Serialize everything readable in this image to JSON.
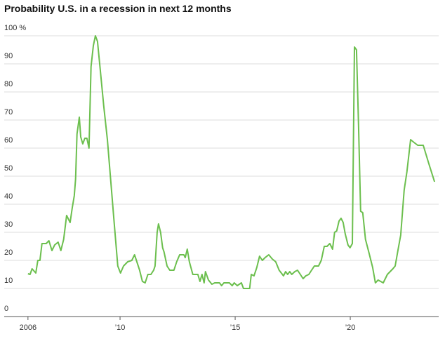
{
  "chart_data": {
    "type": "line",
    "title": "Probability U.S. in a recession in next 12 months",
    "xlim": [
      2005.7,
      2023.84
    ],
    "xticks": [
      {
        "value": 2006,
        "label": "2006"
      },
      {
        "value": 2010,
        "label": "’10"
      },
      {
        "value": 2015,
        "label": "’15"
      },
      {
        "value": 2020,
        "label": "’20"
      }
    ],
    "ylim": [
      0,
      100
    ],
    "yticks": [
      0,
      10,
      20,
      30,
      40,
      50,
      60,
      70,
      80,
      90,
      {
        "value": 100,
        "label": "100 %"
      }
    ],
    "grid": true,
    "series": [
      {
        "color": "#6cbf4e",
        "x": [
          2006.0,
          2006.09,
          2006.18,
          2006.34,
          2006.43,
          2006.52,
          2006.61,
          2006.79,
          2006.91,
          2007.04,
          2007.16,
          2007.31,
          2007.43,
          2007.55,
          2007.68,
          2007.83,
          2007.92,
          2008.01,
          2008.07,
          2008.13,
          2008.23,
          2008.29,
          2008.38,
          2008.47,
          2008.56,
          2008.65,
          2008.74,
          2008.84,
          2008.93,
          2009.02,
          2009.14,
          2009.29,
          2009.45,
          2009.6,
          2009.75,
          2009.9,
          2010.02,
          2010.15,
          2010.33,
          2010.51,
          2010.63,
          2010.73,
          2010.85,
          2010.97,
          2011.09,
          2011.21,
          2011.34,
          2011.46,
          2011.52,
          2011.61,
          2011.67,
          2011.76,
          2011.85,
          2011.91,
          2012.04,
          2012.16,
          2012.34,
          2012.46,
          2012.59,
          2012.77,
          2012.83,
          2012.92,
          2013.01,
          2013.16,
          2013.38,
          2013.47,
          2013.56,
          2013.65,
          2013.71,
          2013.84,
          2013.99,
          2014.11,
          2014.32,
          2014.41,
          2014.51,
          2014.75,
          2014.87,
          2014.96,
          2015.09,
          2015.27,
          2015.36,
          2015.63,
          2015.7,
          2015.82,
          2015.94,
          2016.06,
          2016.18,
          2016.3,
          2016.46,
          2016.61,
          2016.76,
          2016.91,
          2017.1,
          2017.19,
          2017.28,
          2017.37,
          2017.46,
          2017.59,
          2017.71,
          2017.83,
          2017.95,
          2018.07,
          2018.2,
          2018.32,
          2018.44,
          2018.62,
          2018.74,
          2018.87,
          2018.99,
          2019.11,
          2019.23,
          2019.32,
          2019.41,
          2019.51,
          2019.6,
          2019.69,
          2019.78,
          2019.9,
          2019.99,
          2020.09,
          2020.18,
          2020.27,
          2020.36,
          2020.45,
          2020.54,
          2020.66,
          2020.82,
          2020.97,
          2021.09,
          2021.21,
          2021.43,
          2021.61,
          2021.73,
          2021.85,
          2021.95,
          2022.07,
          2022.19,
          2022.34,
          2022.46,
          2022.62,
          2022.77,
          2022.93,
          2023.17,
          2023.41,
          2023.66
        ],
        "values": [
          15.25,
          15,
          17,
          15.5,
          20,
          20,
          26,
          26,
          27,
          23.5,
          25.5,
          26.5,
          23.5,
          27.5,
          36,
          33.5,
          38.5,
          43,
          49,
          65,
          71,
          64,
          61.5,
          63.5,
          63.5,
          60,
          89,
          96.5,
          100,
          98,
          88,
          75,
          63,
          48,
          33,
          18,
          15.5,
          18,
          19.5,
          20,
          22,
          19.5,
          16.5,
          12.5,
          12,
          15,
          15,
          16.5,
          18,
          30,
          33,
          30,
          24.5,
          23,
          18,
          16.5,
          16.5,
          19.5,
          22,
          22,
          21,
          24,
          19.5,
          15,
          15,
          12.5,
          15,
          12,
          16,
          13,
          11.5,
          12,
          12,
          11,
          12,
          12,
          11,
          12,
          11,
          12,
          10,
          10,
          15,
          14.5,
          17.5,
          21.5,
          20,
          21,
          22,
          20.5,
          19.5,
          16.5,
          14.5,
          16,
          15,
          16,
          15,
          16,
          16.5,
          15,
          13.5,
          14.5,
          15,
          16.5,
          18,
          18,
          20,
          25,
          25,
          26,
          24,
          30,
          30.5,
          34,
          35,
          33.5,
          29.5,
          25.5,
          24.5,
          26,
          96,
          95,
          67.5,
          37.5,
          37,
          27.5,
          22.5,
          17.5,
          12,
          13,
          12,
          15,
          16,
          17,
          18,
          23.5,
          29,
          45,
          51.5,
          63,
          62,
          61,
          61,
          54.5,
          48
        ]
      }
    ]
  }
}
